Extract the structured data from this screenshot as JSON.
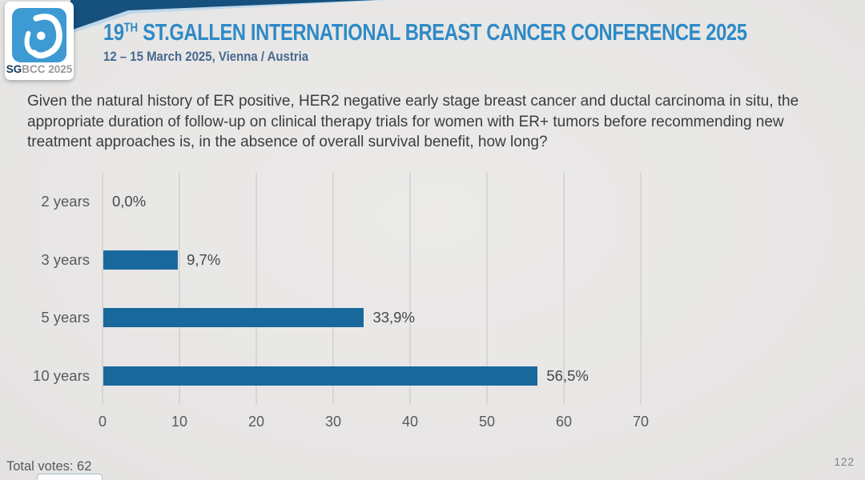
{
  "header": {
    "title_prefix": "19",
    "title_superscript": "TH",
    "title_rest": " ST.GALLEN INTERNATIONAL BREAST CANCER CONFERENCE 2025",
    "subtitle": "12 – 15 March 2025, Vienna / Austria",
    "logo": {
      "icon": "sgbcc-breast-logo-icon",
      "caption_bold": "SG",
      "caption_rest": "BCC 2025"
    }
  },
  "question": "Given the natural history of ER positive, HER2 negative early stage breast cancer and ductal carcinoma in situ, the appropriate duration of follow-up on clinical therapy trials for women with ER+ tumors before recommending new treatment approaches is, in the absence of overall survival benefit, how long?",
  "chart_data": {
    "type": "bar",
    "orientation": "horizontal",
    "title": "",
    "categories": [
      "2 years",
      "3 years",
      "5 years",
      "10 years"
    ],
    "values": [
      0.0,
      9.7,
      33.9,
      56.5
    ],
    "value_labels": [
      "0,0%",
      "9,7%",
      "33,9%",
      "56,5%"
    ],
    "x_ticks": [
      0,
      10,
      20,
      30,
      40,
      50,
      60,
      70
    ],
    "xlim": [
      0,
      70
    ],
    "grid": true,
    "legend": false,
    "bar_color": "#19689c",
    "grid_color": "#d7d6d5"
  },
  "footer": {
    "total_votes": "Total votes: 62",
    "page_number": "122"
  },
  "colors": {
    "title_blue": "#2e8ac6",
    "subtitle_blue": "#47688e",
    "wedge_navy": "#16507d",
    "logo_blue": "#3d9ad2",
    "background": "#e8e7e6"
  }
}
